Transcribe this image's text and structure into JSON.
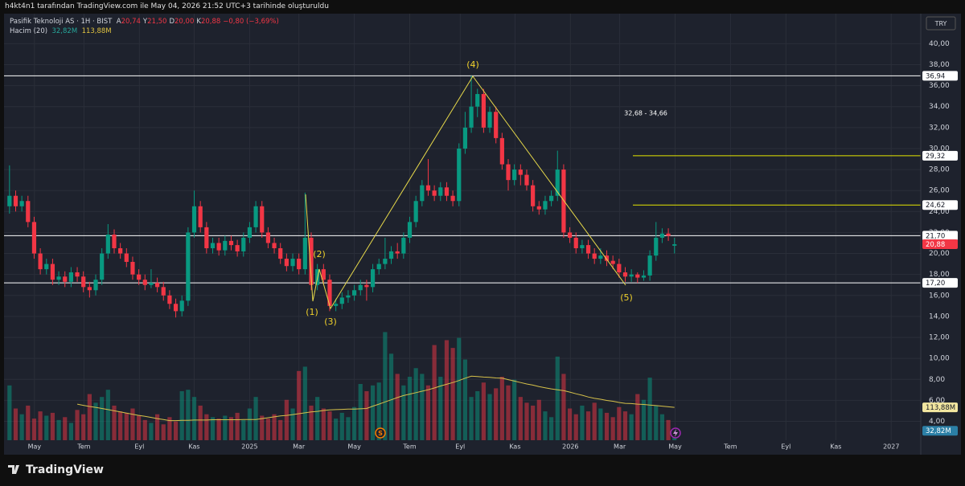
{
  "chart_data": {
    "type": "candlestick",
    "header": "h4kt4n1 tarafından TradingView.com ile May 04, 2026 21:52 UTC+3 tarihinde oluşturuldu",
    "legend": {
      "symbol": "Pasifik Teknoloji AS · 1H · BIST",
      "fields": [
        {
          "key": "A",
          "value": "20,74"
        },
        {
          "key": "Y",
          "value": "21,50"
        },
        {
          "key": "D",
          "value": "20,00"
        },
        {
          "key": "K",
          "value": "20,88"
        }
      ],
      "change": "−0,80 (−3,69%)"
    },
    "volume_legend": {
      "name": "Hacim (20)",
      "value": "32,82M",
      "ma": "113,88M"
    },
    "currency": "TRY",
    "brand": "TradingView",
    "up_color": "#089981",
    "down_color": "#f23645",
    "xlim": [
      -0.5,
      148
    ],
    "xticks": [
      {
        "value": 4.05,
        "label": "May"
      },
      {
        "value": 12.1,
        "label": "Tem"
      },
      {
        "value": 21.1,
        "label": "Eyl"
      },
      {
        "value": 30,
        "label": "Kas"
      },
      {
        "value": 39,
        "label": "2025"
      },
      {
        "value": 47,
        "label": "Mar"
      },
      {
        "value": 56,
        "label": "May"
      },
      {
        "value": 65,
        "label": "Tem"
      },
      {
        "value": 73.2,
        "label": "Eyl"
      },
      {
        "value": 82.1,
        "label": "Kas"
      },
      {
        "value": 91.1,
        "label": "2026"
      },
      {
        "value": 99.1,
        "label": "Mar"
      },
      {
        "value": 108.1,
        "label": "May"
      },
      {
        "value": 117.1,
        "label": "Tem"
      },
      {
        "value": 126.1,
        "label": "Eyl"
      },
      {
        "value": 134.2,
        "label": "Kas"
      },
      {
        "value": 143.2,
        "label": "2027"
      }
    ],
    "ylim": [
      2.2,
      41.1
    ],
    "yticks": [
      {
        "value": 4,
        "label": "4,00"
      },
      {
        "value": 6,
        "label": "6,00"
      },
      {
        "value": 8,
        "label": "8,00"
      },
      {
        "value": 10,
        "label": "10,00"
      },
      {
        "value": 12,
        "label": "12,00"
      },
      {
        "value": 14,
        "label": "14,00"
      },
      {
        "value": 16,
        "label": "16,00"
      },
      {
        "value": 18,
        "label": "18,00"
      },
      {
        "value": 20,
        "label": "20,00"
      },
      {
        "value": 22,
        "label": "22,00"
      },
      {
        "value": 24,
        "label": "24,00"
      },
      {
        "value": 26,
        "label": "26,00"
      },
      {
        "value": 28,
        "label": "28,00"
      },
      {
        "value": 30,
        "label": "30,00"
      },
      {
        "value": 32,
        "label": "32,00"
      },
      {
        "value": 34,
        "label": "34,00"
      },
      {
        "value": 36,
        "label": "36,00"
      },
      {
        "value": 38,
        "label": "38,00"
      },
      {
        "value": 40,
        "label": "40,00"
      }
    ],
    "grid": true,
    "open": [
      24.5,
      25.5,
      24.5,
      25,
      23,
      20,
      18.5,
      19,
      17.5,
      17.8,
      17.3,
      18.2,
      17.8,
      16.8,
      16.5,
      17.5,
      20,
      21.8,
      20.5,
      20,
      19.2,
      18,
      17.5,
      17,
      17.2,
      16.8,
      16,
      15.2,
      14.5,
      15.5,
      22,
      24.5,
      22.5,
      20.5,
      21,
      20.3,
      21.2,
      20.8,
      20.2,
      21.5,
      22.5,
      24.5,
      22,
      21,
      20.5,
      19.5,
      18.8,
      19.5,
      18.5,
      21.5,
      17,
      18.5,
      17.5,
      15,
      15.2,
      15.8,
      16,
      16.5,
      17,
      16.8,
      18.5,
      19,
      19.5,
      20.2,
      20,
      21.5,
      23,
      25,
      26.5,
      26,
      25.5,
      26.3,
      25.5,
      25,
      30,
      32,
      34,
      35.2,
      32,
      33.5,
      31,
      28.5,
      27,
      28,
      27.5,
      26.5,
      24.5,
      24.2,
      25,
      25.5,
      28,
      22,
      21.5,
      20.5,
      20.8,
      20,
      19.5,
      19.8,
      19.3,
      19,
      18.2,
      17.8,
      18,
      17.7,
      17.9,
      19.8,
      21.5,
      21.9,
      20.74
    ],
    "high": [
      28.4,
      26,
      25.5,
      25.5,
      23.5,
      20.5,
      19.5,
      19.5,
      18.3,
      18.3,
      18.7,
      18.7,
      18.3,
      17.3,
      18,
      20.5,
      22.8,
      22.3,
      21,
      20.5,
      19.7,
      18.5,
      18,
      18.5,
      17.7,
      17.3,
      16.5,
      15.7,
      16,
      22.5,
      26,
      25,
      23,
      21.5,
      21.5,
      21.7,
      21.7,
      21.3,
      22,
      23,
      25,
      25,
      22.5,
      21.5,
      21,
      20,
      20,
      20,
      25.8,
      22,
      19,
      19,
      18,
      15.7,
      16.3,
      16.5,
      17,
      17.5,
      17.5,
      19,
      19.5,
      21.5,
      20.7,
      21,
      22,
      23.5,
      25.5,
      27,
      29,
      26.5,
      26.8,
      26.8,
      26,
      30.5,
      33.5,
      36.94,
      35.7,
      35.7,
      34,
      34,
      31.5,
      29,
      28.5,
      28.5,
      28,
      27,
      25,
      25.5,
      26,
      29.8,
      28.5,
      22.5,
      22,
      21.3,
      21.3,
      20.5,
      20.5,
      20.3,
      19.8,
      19.5,
      18.7,
      18.5,
      18.2,
      18.4,
      20.3,
      23,
      22.4,
      22.4,
      21.5
    ],
    "low": [
      23.8,
      24,
      24,
      22.5,
      19.5,
      18,
      18,
      17,
      17,
      16.8,
      16.8,
      17.3,
      16.3,
      15.8,
      16,
      17,
      19.5,
      20,
      19.5,
      18.7,
      17.5,
      17,
      16.5,
      16.7,
      16.3,
      15.5,
      14.7,
      13.9,
      14,
      15,
      21.5,
      22,
      20,
      20,
      19.8,
      19.8,
      20.3,
      19.7,
      19.7,
      21,
      22,
      21.5,
      20.5,
      20,
      19,
      18.3,
      18.3,
      18,
      18,
      16.5,
      16.5,
      17,
      14.5,
      14.5,
      14.7,
      15.3,
      15.5,
      16,
      15.5,
      16.3,
      18,
      18.5,
      19,
      19.5,
      19.5,
      21,
      22.5,
      24.5,
      25.5,
      25,
      25,
      25,
      24.5,
      24.5,
      29.5,
      31.5,
      33,
      31.5,
      31.5,
      30.5,
      28,
      26,
      26.5,
      26.5,
      26,
      24,
      23.7,
      23.7,
      24.5,
      25,
      21.5,
      21,
      20,
      20,
      19.5,
      19,
      19,
      18.8,
      18.5,
      17.7,
      17.3,
      17.3,
      17.2,
      17.4,
      17.4,
      19.3,
      21,
      21.2,
      20
    ],
    "close": [
      25.5,
      24.5,
      25,
      23,
      20,
      18.5,
      19,
      17.5,
      17.8,
      17.3,
      18.2,
      17.8,
      16.8,
      16.5,
      17.5,
      20,
      21.8,
      20.5,
      20,
      19.2,
      18,
      17.5,
      17,
      17.2,
      16.8,
      16,
      15.2,
      14.5,
      15.5,
      22,
      24.5,
      22.5,
      20.5,
      21,
      20.3,
      21.2,
      20.8,
      20.2,
      21.5,
      22.5,
      24.5,
      22,
      21,
      20.5,
      19.5,
      18.8,
      19.5,
      18.5,
      21.5,
      17,
      18.5,
      17.5,
      15,
      15.2,
      15.8,
      16,
      16.5,
      17,
      16.8,
      18.5,
      19,
      19.5,
      20.2,
      20,
      21.5,
      23,
      25,
      26.5,
      26,
      25.5,
      26.3,
      25.5,
      25,
      30,
      32,
      34,
      35.2,
      32,
      33.5,
      31,
      28.5,
      27,
      28,
      27.5,
      26.5,
      24.5,
      24.2,
      25,
      25.5,
      28,
      22,
      21.5,
      20.5,
      20.8,
      20,
      19.5,
      19.8,
      19.3,
      19,
      18.2,
      17.8,
      18,
      17.7,
      17.9,
      19.8,
      21.5,
      21.9,
      21.68,
      20.88
    ],
    "volume": {
      "ylim": [
        0,
        390
      ],
      "ma_color": "#d6c14a",
      "values": [
        190,
        110,
        90,
        120,
        75,
        100,
        85,
        95,
        70,
        80,
        60,
        105,
        90,
        160,
        130,
        150,
        175,
        120,
        100,
        95,
        110,
        85,
        70,
        60,
        90,
        55,
        80,
        65,
        170,
        175,
        150,
        120,
        90,
        80,
        75,
        85,
        80,
        95,
        70,
        110,
        150,
        85,
        75,
        90,
        70,
        140,
        110,
        240,
        255,
        120,
        150,
        110,
        100,
        75,
        95,
        80,
        115,
        195,
        170,
        190,
        200,
        375,
        300,
        230,
        190,
        220,
        250,
        230,
        190,
        330,
        220,
        347,
        320,
        355,
        280,
        150,
        170,
        200,
        160,
        180,
        220,
        190,
        210,
        150,
        130,
        120,
        140,
        100,
        80,
        290,
        230,
        110,
        90,
        120,
        100,
        130,
        110,
        95,
        80,
        115,
        100,
        90,
        160,
        140,
        217,
        120,
        90,
        70,
        32.82
      ],
      "ma": [
        null,
        null,
        null,
        null,
        null,
        null,
        null,
        null,
        null,
        null,
        null,
        125,
        121,
        117,
        114,
        110,
        106,
        102,
        98,
        94,
        90,
        86,
        83,
        79,
        75,
        72,
        68,
        68,
        69,
        69,
        70,
        70,
        70,
        71,
        71,
        71,
        71,
        71,
        72,
        72,
        72,
        75,
        78,
        81,
        84,
        86,
        89,
        92,
        95,
        98,
        100,
        103,
        105,
        106,
        107,
        108,
        108,
        109,
        110,
        118,
        125,
        133,
        140,
        148,
        155,
        160,
        165,
        170,
        175,
        181,
        188,
        194,
        200,
        207,
        215,
        222,
        221,
        219,
        218,
        216,
        215,
        210,
        205,
        200,
        195,
        191,
        186,
        182,
        178,
        175,
        172,
        167,
        161,
        156,
        150,
        145,
        142,
        138,
        135,
        131,
        128,
        127,
        125,
        124,
        122,
        120,
        118,
        116,
        113.88
      ]
    },
    "levels": [
      {
        "value": 36.94,
        "label": "36,94",
        "color": "#ffffff",
        "kind": "line"
      },
      {
        "value": 29.32,
        "label": "29,32",
        "color": "#e6e600",
        "kind": "ray"
      },
      {
        "value": 24.62,
        "label": "24,62",
        "color": "#e6e600",
        "kind": "ray"
      },
      {
        "value": 21.7,
        "label": "21,70",
        "color": "#ffffff",
        "kind": "line"
      },
      {
        "value": 17.2,
        "label": "17,20",
        "color": "#ffffff",
        "kind": "line"
      }
    ],
    "last_price": {
      "value": 20.88,
      "label": "20,88"
    },
    "waves": [
      "(1)",
      "(2)",
      "(3)",
      "(4)",
      "(5)"
    ],
    "range_label": "32,68 - 34,66",
    "event_markers": [
      "S"
    ]
  }
}
